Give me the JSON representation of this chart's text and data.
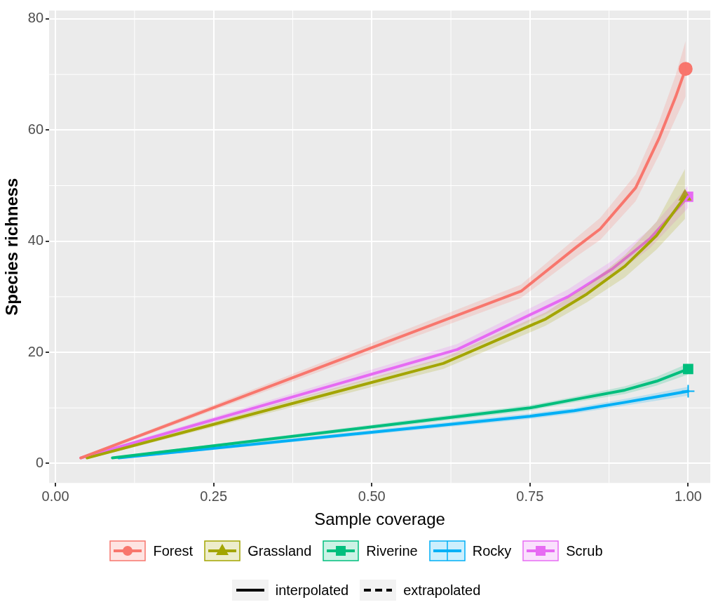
{
  "chart_data": {
    "type": "line",
    "xlabel": "Sample coverage",
    "ylabel": "Species richness",
    "xlim": [
      -0.01,
      1.035
    ],
    "ylim": [
      -3.5,
      81.5
    ],
    "xticks": [
      {
        "value": 0,
        "label": "0.00"
      },
      {
        "value": 0.25,
        "label": "0.25"
      },
      {
        "value": 0.5,
        "label": "0.50"
      },
      {
        "value": 0.75,
        "label": "0.75"
      },
      {
        "value": 1,
        "label": "1.00"
      }
    ],
    "yticks": [
      0,
      20,
      40,
      60,
      80
    ],
    "grid": true,
    "legend": "bottom",
    "series": [
      {
        "name": "Forest",
        "color": "#f8766d",
        "line_style": "solid",
        "x": [
          0.04,
          0.736,
          0.823,
          0.861,
          0.917,
          0.954,
          0.98,
          0.996
        ],
        "values": [
          1,
          31,
          38.9,
          42.2,
          49.6,
          58.5,
          65.9,
          71
        ],
        "lower": [
          0.8,
          29.8,
          37.2,
          40.2,
          47.2,
          55.5,
          62,
          66
        ],
        "upper": [
          1.2,
          32.2,
          40.6,
          44.2,
          52,
          61.5,
          69.8,
          76
        ]
      },
      {
        "name": "Grassland",
        "color": "#a3a500",
        "line_style": "solid",
        "x": [
          0.05,
          0.613,
          0.775,
          0.84,
          0.9,
          0.95,
          0.995
        ],
        "values": [
          1,
          18,
          26,
          30.5,
          35.5,
          41,
          48
        ],
        "lower": [
          0.8,
          17,
          24.8,
          29,
          33.5,
          38.5,
          44
        ],
        "upper": [
          1.2,
          19,
          27.2,
          32,
          37.5,
          43.5,
          53
        ]
      },
      {
        "name": "Riverine",
        "color": "#00bf7d",
        "line_style": "solid",
        "x": [
          0.09,
          0.75,
          0.82,
          0.9,
          0.95,
          1
        ],
        "values": [
          1,
          10,
          11.5,
          13.2,
          14.8,
          17
        ],
        "lower": [
          0.8,
          9.5,
          11,
          12.5,
          14,
          16
        ],
        "upper": [
          1.2,
          10.5,
          12,
          13.9,
          15.6,
          18
        ]
      },
      {
        "name": "Rocky",
        "color": "#00b0f6",
        "line_style": "solid",
        "x": [
          0.1,
          0.75,
          0.82,
          0.9,
          0.95,
          1
        ],
        "values": [
          1,
          8.5,
          9.5,
          11,
          12,
          13
        ],
        "lower": [
          0.8,
          8,
          9,
          10.4,
          11.3,
          12.2
        ],
        "upper": [
          1.2,
          9,
          10,
          11.6,
          12.7,
          13.8
        ]
      },
      {
        "name": "Scrub",
        "color": "#e76bf3",
        "line_style": "solid",
        "x": [
          0.04,
          0.635,
          0.81,
          0.88,
          0.94,
          1
        ],
        "values": [
          1,
          20.5,
          30,
          35,
          40.5,
          48
        ],
        "lower": [
          0.8,
          19.5,
          28.7,
          33.5,
          38.8,
          46
        ],
        "upper": [
          1.2,
          21.5,
          31.3,
          36.5,
          42.2,
          50
        ]
      },
      {
        "type": "scatter",
        "color": "#f8766d",
        "marker": "circle",
        "x": [
          0.996
        ],
        "values": [
          71
        ]
      },
      {
        "type": "scatter",
        "color": "#a3a500",
        "marker": "triangle",
        "x": [
          0.995
        ],
        "values": [
          48
        ]
      },
      {
        "type": "scatter",
        "color": "#00bf7d",
        "marker": "square",
        "x": [
          1
        ],
        "values": [
          17
        ]
      },
      {
        "type": "scatter",
        "color": "#00b0f6",
        "marker": "cross",
        "x": [
          1
        ],
        "values": [
          13
        ]
      },
      {
        "type": "scatter",
        "color": "#e76bf3",
        "marker": "square",
        "x": [
          1
        ],
        "values": [
          48
        ]
      },
      {
        "name": "interpolated",
        "color": "#000000",
        "line_style": "solid"
      },
      {
        "name": "extrapolated",
        "color": "#000000",
        "line_style": "dashed"
      }
    ]
  }
}
